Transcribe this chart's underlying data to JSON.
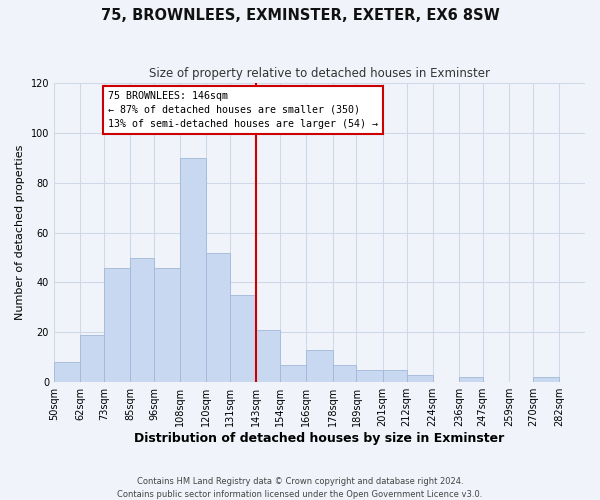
{
  "title": "75, BROWNLEES, EXMINSTER, EXETER, EX6 8SW",
  "subtitle": "Size of property relative to detached houses in Exminster",
  "xlabel": "Distribution of detached houses by size in Exminster",
  "ylabel": "Number of detached properties",
  "bar_left_edges": [
    50,
    62,
    73,
    85,
    96,
    108,
    120,
    131,
    143,
    154,
    166,
    178,
    189,
    201,
    212,
    224,
    236,
    247,
    259,
    270,
    282
  ],
  "bar_heights": [
    8,
    19,
    46,
    50,
    46,
    90,
    52,
    35,
    21,
    7,
    13,
    7,
    5,
    5,
    3,
    0,
    2,
    0,
    0,
    2
  ],
  "bar_color": "#c8d8f0",
  "bar_edgecolor": "#a0b8d8",
  "vline_x": 143,
  "vline_color": "#cc0000",
  "annotation_title": "75 BROWNLEES: 146sqm",
  "annotation_line1": "← 87% of detached houses are smaller (350)",
  "annotation_line2": "13% of semi-detached houses are larger (54) →",
  "annotation_box_color": "#ffffff",
  "annotation_box_edgecolor": "#cc0000",
  "tick_labels": [
    "50sqm",
    "62sqm",
    "73sqm",
    "85sqm",
    "96sqm",
    "108sqm",
    "120sqm",
    "131sqm",
    "143sqm",
    "154sqm",
    "166sqm",
    "178sqm",
    "189sqm",
    "201sqm",
    "212sqm",
    "224sqm",
    "236sqm",
    "247sqm",
    "259sqm",
    "270sqm",
    "282sqm"
  ],
  "ylim": [
    0,
    120
  ],
  "yticks": [
    0,
    20,
    40,
    60,
    80,
    100,
    120
  ],
  "footnote1": "Contains HM Land Registry data © Crown copyright and database right 2024.",
  "footnote2": "Contains public sector information licensed under the Open Government Licence v3.0.",
  "bg_color": "#f0f4fa",
  "grid_color": "#d0d8e8"
}
